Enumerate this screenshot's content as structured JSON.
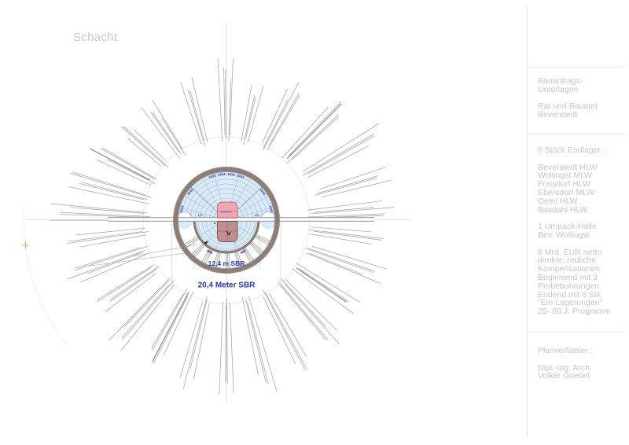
{
  "title": "Schacht",
  "drawing": {
    "dim_inner": "12,4 m SBR",
    "dim_outer": "20,4 Meter SBR"
  },
  "panel": {
    "sections": [
      {
        "lines": [
          "Bauantrags-",
          "Unterlagen",
          "",
          "Rat und Bauamt",
          "Beverstedt"
        ]
      },
      {
        "lines": [
          "6 Stück Endlager :",
          "",
          "Beverstedt HLW",
          "Wollingst MLW",
          "Frelsdorf HLW",
          "Ebersdorf MLW",
          "Oetel HLW",
          "Basdahl HLW",
          "",
          "1 Umpack-Halle",
          "Bev. Wollingst",
          "",
          "8 Mrd. EUR netto",
          "direkte, redliche",
          "Kompensationen",
          "Beginnend mit 3",
          "Probebohrungen",
          "Endend mit 6 Stk",
          "\"Ein-Lagerungen\"",
          "25- 60 J. Programm"
        ]
      },
      {
        "lines": [
          "Planverfasser :",
          "",
          "Dipl.-Ing. Arch.",
          "Volker Goebel"
        ]
      }
    ]
  },
  "colors": {
    "dim_text_blue": "#2a35c8",
    "panel_text_gray": "#c5c5c7",
    "gallery_fill_blue": "#d9ebf9",
    "arc_blue": "#9cb6ca",
    "ring_gray_brown": "#877c74",
    "ray_gray": "#9e9e9e",
    "cask_pink": "#f2a8b4",
    "cask_dark": "#bf9090",
    "marker_orange": "#f0a050"
  }
}
